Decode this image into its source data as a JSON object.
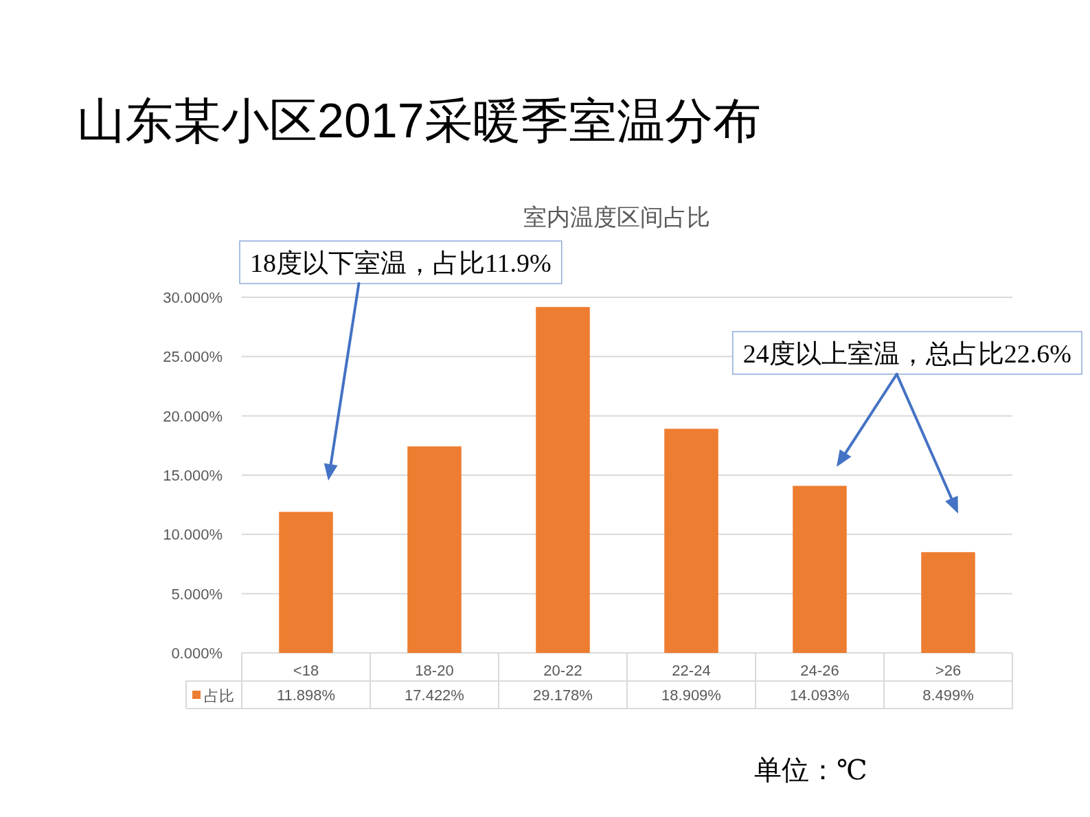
{
  "chart_data": {
    "type": "bar",
    "title": "山东某小区2017采暖季室温分布",
    "subtitle": "室内温度区间占比",
    "categories": [
      "<18",
      "18-20",
      "20-22",
      "22-24",
      "24-26",
      ">26"
    ],
    "series": [
      {
        "name": "占比",
        "color": "#ed7d31",
        "values": [
          11.898,
          17.422,
          29.178,
          18.909,
          14.093,
          8.499
        ],
        "value_labels": [
          "11.898%",
          "17.422%",
          "29.178%",
          "18.909%",
          "14.093%",
          "8.499%"
        ]
      }
    ],
    "ylim": [
      0,
      30
    ],
    "yticks": [
      {
        "value": 0,
        "label": "0.000%"
      },
      {
        "value": 5,
        "label": "5.000%"
      },
      {
        "value": 10,
        "label": "10.000%"
      },
      {
        "value": 15,
        "label": "15.000%"
      },
      {
        "value": 20,
        "label": "20.000%"
      },
      {
        "value": 25,
        "label": "25.000%"
      },
      {
        "value": 30,
        "label": "30.000%"
      }
    ],
    "grid": "y",
    "legend": "bottom",
    "annotations": [
      "18度以下室温，占比11.9%",
      "24度以上室温，总占比22.6%",
      "单位：℃"
    ]
  }
}
